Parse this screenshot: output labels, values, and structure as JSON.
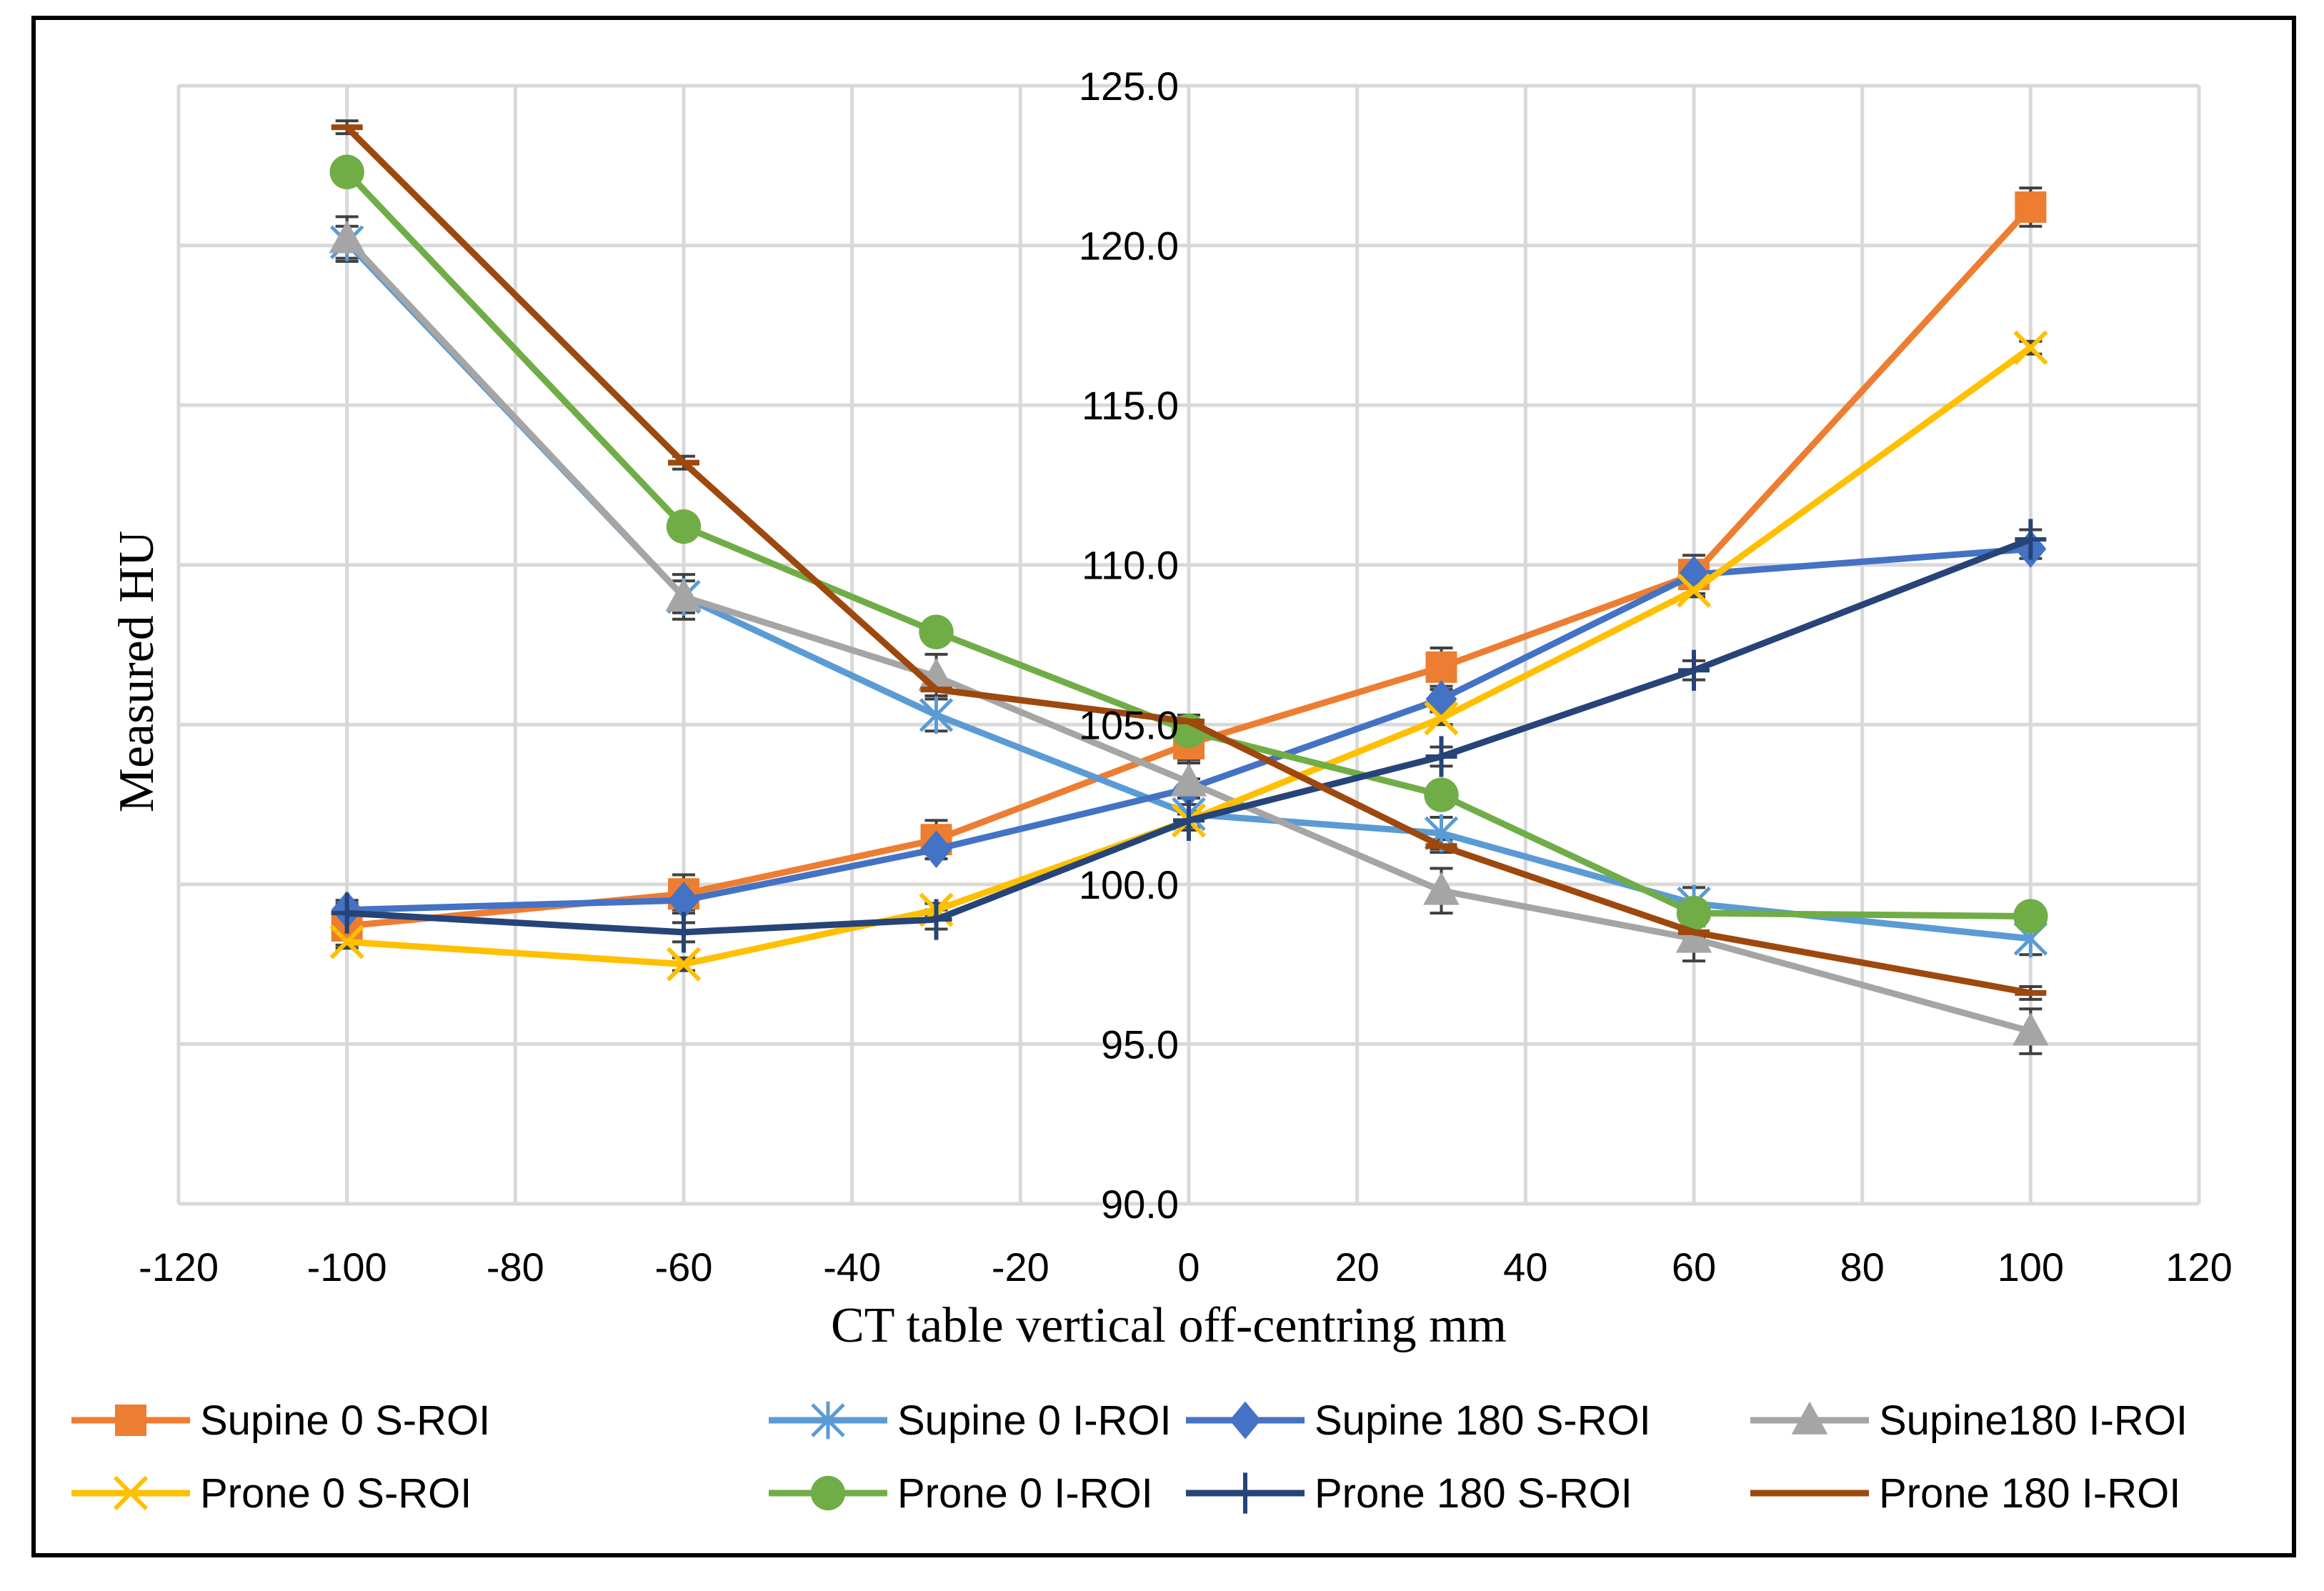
{
  "chart_data": {
    "type": "line",
    "title": "",
    "xlabel": "CT table vertical off-centring mm",
    "ylabel": "Measured HU",
    "xlim": [
      -120,
      120
    ],
    "ylim": [
      90,
      125
    ],
    "x_ticks": [
      -120,
      -100,
      -80,
      -60,
      -40,
      -20,
      0,
      20,
      40,
      60,
      80,
      100,
      120
    ],
    "x_tick_labels": [
      "-120",
      "-100",
      "-80",
      "-60",
      "-40",
      "-20",
      "0",
      "20",
      "40",
      "60",
      "80",
      "100",
      "120"
    ],
    "y_ticks": [
      90,
      95,
      100,
      105,
      110,
      115,
      120,
      125
    ],
    "y_tick_labels": [
      "90.0",
      "95.0",
      "100.0",
      "105.0",
      "110.0",
      "115.0",
      "120.0",
      "125.0"
    ],
    "grid": true,
    "legend_position": "bottom",
    "x": [
      -100,
      -60,
      -30,
      0,
      30,
      60,
      100
    ],
    "series": [
      {
        "name": "Supine 0 S-ROI",
        "color": "#ED7D31",
        "marker": "square",
        "values": [
          98.7,
          99.7,
          101.4,
          104.4,
          106.8,
          109.7,
          121.2
        ],
        "error": 0.6
      },
      {
        "name": "Supine 0 I-ROI",
        "color": "#5B9BD5",
        "marker": "asterisk",
        "values": [
          120.1,
          109.0,
          105.3,
          102.2,
          101.6,
          99.4,
          98.3
        ],
        "error": 0.5
      },
      {
        "name": "Supine 180 S-ROI",
        "color": "#4472C4",
        "marker": "diamond",
        "values": [
          99.2,
          99.5,
          101.1,
          103.0,
          105.8,
          109.7,
          110.5
        ],
        "error": 0.3
      },
      {
        "name": "Supine180 I-ROI",
        "color": "#A5A5A5",
        "marker": "triangle",
        "values": [
          120.2,
          109.0,
          106.5,
          103.2,
          99.8,
          98.3,
          95.4
        ],
        "error": 0.7
      },
      {
        "name": "Prone 0 S-ROI",
        "color": "#FFC000",
        "marker": "x",
        "values": [
          98.2,
          97.5,
          99.2,
          102.0,
          105.2,
          109.2,
          116.8
        ],
        "error": 0.2
      },
      {
        "name": "Prone 0 I-ROI",
        "color": "#70AD47",
        "marker": "circle",
        "values": [
          122.3,
          111.2,
          107.9,
          104.8,
          102.8,
          99.1,
          99.0
        ],
        "error": 0.2
      },
      {
        "name": "Prone 180 S-ROI",
        "color": "#264478",
        "marker": "plus",
        "values": [
          99.1,
          98.5,
          98.9,
          102.0,
          104.0,
          106.7,
          110.8
        ],
        "error": 0.3
      },
      {
        "name": "Prone 180 I-ROI",
        "color": "#9E480E",
        "marker": "dash",
        "values": [
          123.7,
          113.2,
          106.1,
          105.1,
          101.2,
          98.5,
          96.6
        ],
        "error": 0.2
      }
    ]
  }
}
